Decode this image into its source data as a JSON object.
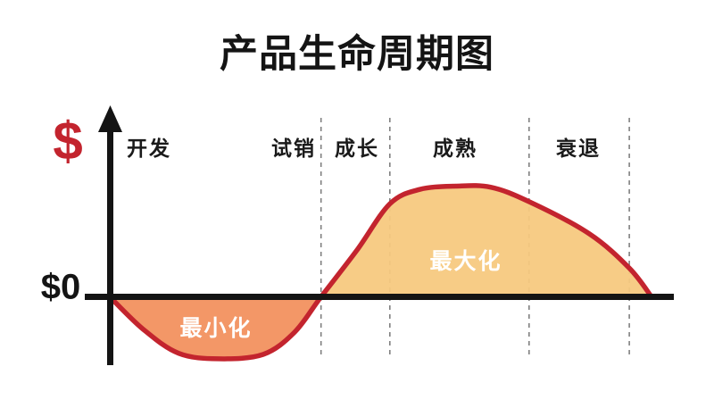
{
  "chart_data": {
    "type": "area",
    "title": "产品生命周期图",
    "y_axis": {
      "symbol": "$",
      "zero_label": "$0"
    },
    "phases": [
      "开发",
      "试销",
      "成长",
      "成熟",
      "衰退"
    ],
    "annotations": {
      "negative_area": "最小化",
      "positive_area": "最大化"
    },
    "series": [
      {
        "name": "product-lifecycle-cashflow-curve",
        "x_pct": [
          0,
          6.1,
          12.7,
          20.1,
          28.3,
          34.1,
          39.0,
          45.6,
          51.7,
          57.2,
          63.8,
          70.3,
          77.4,
          88.5,
          95.9,
          100
        ],
        "y_rel": [
          0,
          -0.29,
          -0.51,
          -0.56,
          -0.52,
          -0.32,
          0,
          0.42,
          0.84,
          0.97,
          1.0,
          0.99,
          0.86,
          0.57,
          0.26,
          0
        ],
        "zero_cross_index": 6
      }
    ],
    "phase_divider_x_pct": [
      39.0,
      51.7,
      77.4,
      95.9
    ],
    "x_range_pct": [
      0,
      100
    ],
    "y_range_rel": [
      -0.56,
      1.0
    ],
    "grid": "dashed-vertical-phase-dividers",
    "legend": "none",
    "colors": {
      "curve": "#C3242E",
      "negative_fill": "#F2915E",
      "positive_fill": "#F7C97E",
      "axis": "#141414",
      "divider": "#808080",
      "dollar_sign": "#C3242E",
      "annotation_text": "#FFFFFF",
      "background": "#FFFFFF"
    }
  }
}
